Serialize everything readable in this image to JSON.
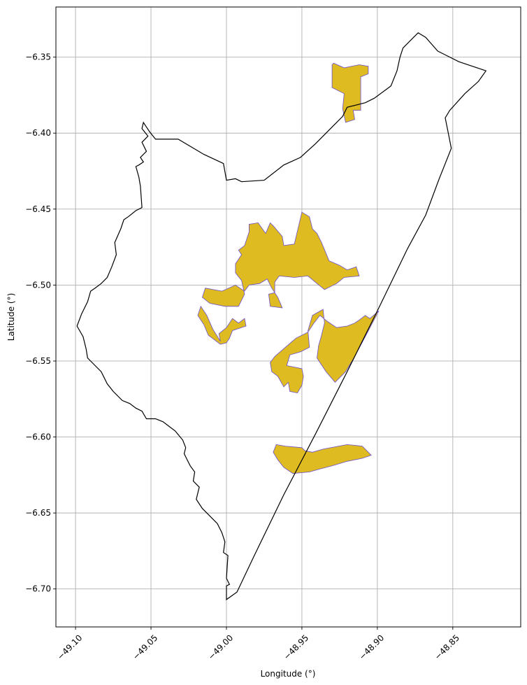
{
  "chart_data": {
    "type": "map",
    "xlabel": "Longitude (°)",
    "ylabel": "Latitude (°)",
    "xlim": [
      -49.113,
      -48.805
    ],
    "ylim": [
      -6.725,
      -6.317
    ],
    "grid": true,
    "x_ticks": [
      {
        "value": -49.1,
        "label": "−49.10"
      },
      {
        "value": -49.05,
        "label": "−49.05"
      },
      {
        "value": -49.0,
        "label": "−49.00"
      },
      {
        "value": -48.95,
        "label": "−48.95"
      },
      {
        "value": -48.9,
        "label": "−48.90"
      },
      {
        "value": -48.85,
        "label": "−48.85"
      }
    ],
    "y_ticks": [
      {
        "value": -6.35,
        "label": "−6.35"
      },
      {
        "value": -6.4,
        "label": "−6.40"
      },
      {
        "value": -6.45,
        "label": "−6.45"
      },
      {
        "value": -6.5,
        "label": "−6.50"
      },
      {
        "value": -6.55,
        "label": "−6.55"
      },
      {
        "value": -6.6,
        "label": "−6.60"
      },
      {
        "value": -6.65,
        "label": "−6.65"
      },
      {
        "value": -6.7,
        "label": "−6.70"
      }
    ],
    "colors": {
      "fill": "#dfbb22",
      "edge": "#6a4fd0",
      "boundary": "#000000"
    },
    "boundary": [
      [
        -48.873,
        -6.334
      ],
      [
        -48.877,
        -6.338
      ],
      [
        -48.883,
        -6.344
      ],
      [
        -48.885,
        -6.35
      ],
      [
        -48.887,
        -6.359
      ],
      [
        -48.891,
        -6.369
      ],
      [
        -48.902,
        -6.377
      ],
      [
        -48.908,
        -6.38
      ],
      [
        -48.92,
        -6.383
      ],
      [
        -48.923,
        -6.389
      ],
      [
        -48.93,
        -6.396
      ],
      [
        -48.941,
        -6.407
      ],
      [
        -48.951,
        -6.416
      ],
      [
        -48.962,
        -6.421
      ],
      [
        -48.975,
        -6.431
      ],
      [
        -48.99,
        -6.432
      ],
      [
        -48.994,
        -6.43
      ],
      [
        -49.0,
        -6.431
      ],
      [
        -49.002,
        -6.42
      ],
      [
        -49.015,
        -6.414
      ],
      [
        -49.032,
        -6.404
      ],
      [
        -49.047,
        -6.404
      ],
      [
        -49.051,
        -6.399
      ],
      [
        -49.053,
        -6.396
      ],
      [
        -49.055,
        -6.393
      ],
      [
        -49.056,
        -6.397
      ],
      [
        -49.052,
        -6.402
      ],
      [
        -49.056,
        -6.406
      ],
      [
        -49.053,
        -6.412
      ],
      [
        -49.057,
        -6.416
      ],
      [
        -49.055,
        -6.419
      ],
      [
        -49.058,
        -6.421
      ],
      [
        -49.06,
        -6.422
      ],
      [
        -49.058,
        -6.429
      ],
      [
        -49.057,
        -6.435
      ],
      [
        -49.056,
        -6.449
      ],
      [
        -49.06,
        -6.451
      ],
      [
        -49.065,
        -6.455
      ],
      [
        -49.068,
        -6.457
      ],
      [
        -49.07,
        -6.463
      ],
      [
        -49.074,
        -6.472
      ],
      [
        -49.073,
        -6.48
      ],
      [
        -49.076,
        -6.488
      ],
      [
        -49.079,
        -6.495
      ],
      [
        -49.083,
        -6.499
      ],
      [
        -49.087,
        -6.502
      ],
      [
        -49.09,
        -6.504
      ],
      [
        -49.092,
        -6.511
      ],
      [
        -49.096,
        -6.519
      ],
      [
        -49.099,
        -6.527
      ],
      [
        -49.095,
        -6.534
      ],
      [
        -49.093,
        -6.542
      ],
      [
        -49.092,
        -6.548
      ],
      [
        -49.087,
        -6.553
      ],
      [
        -49.083,
        -6.557
      ],
      [
        -49.079,
        -6.565
      ],
      [
        -49.075,
        -6.57
      ],
      [
        -49.069,
        -6.576
      ],
      [
        -49.064,
        -6.578
      ],
      [
        -49.06,
        -6.581
      ],
      [
        -49.056,
        -6.583
      ],
      [
        -49.053,
        -6.588
      ],
      [
        -49.047,
        -6.588
      ],
      [
        -49.042,
        -6.59
      ],
      [
        -49.038,
        -6.593
      ],
      [
        -49.034,
        -6.596
      ],
      [
        -49.029,
        -6.602
      ],
      [
        -49.027,
        -6.607
      ],
      [
        -49.028,
        -6.611
      ],
      [
        -49.026,
        -6.615
      ],
      [
        -49.024,
        -6.619
      ],
      [
        -49.021,
        -6.623
      ],
      [
        -49.022,
        -6.629
      ],
      [
        -49.018,
        -6.633
      ],
      [
        -49.02,
        -6.641
      ],
      [
        -49.016,
        -6.647
      ],
      [
        -49.012,
        -6.651
      ],
      [
        -49.006,
        -6.657
      ],
      [
        -49.003,
        -6.663
      ],
      [
        -49.001,
        -6.669
      ],
      [
        -49.002,
        -6.676
      ],
      [
        -48.999,
        -6.678
      ],
      [
        -49.0,
        -6.693
      ],
      [
        -48.998,
        -6.697
      ],
      [
        -49.0,
        -6.698
      ],
      [
        -49.0,
        -6.707
      ],
      [
        -48.993,
        -6.702
      ],
      [
        -48.982,
        -6.679
      ],
      [
        -48.962,
        -6.638
      ],
      [
        -48.941,
        -6.598
      ],
      [
        -48.92,
        -6.557
      ],
      [
        -48.899,
        -6.515
      ],
      [
        -48.88,
        -6.476
      ],
      [
        -48.868,
        -6.454
      ],
      [
        -48.859,
        -6.43
      ],
      [
        -48.851,
        -6.41
      ],
      [
        -48.853,
        -6.4
      ],
      [
        -48.855,
        -6.39
      ],
      [
        -48.852,
        -6.385
      ],
      [
        -48.842,
        -6.374
      ],
      [
        -48.833,
        -6.366
      ],
      [
        -48.828,
        -6.359
      ],
      [
        -48.846,
        -6.353
      ],
      [
        -48.86,
        -6.346
      ],
      [
        -48.868,
        -6.337
      ],
      [
        -48.873,
        -6.334
      ]
    ],
    "patches": [
      [
        [
          -48.929,
          -6.354
        ],
        [
          -48.922,
          -6.357
        ],
        [
          -48.912,
          -6.355
        ],
        [
          -48.906,
          -6.356
        ],
        [
          -48.906,
          -6.361
        ],
        [
          -48.911,
          -6.363
        ],
        [
          -48.911,
          -6.385
        ],
        [
          -48.916,
          -6.385
        ],
        [
          -48.915,
          -6.391
        ],
        [
          -48.921,
          -6.393
        ],
        [
          -48.923,
          -6.384
        ],
        [
          -48.922,
          -6.374
        ],
        [
          -48.93,
          -6.37
        ],
        [
          -48.93,
          -6.355
        ]
      ],
      [
        [
          -48.985,
          -6.46
        ],
        [
          -48.979,
          -6.459
        ],
        [
          -48.974,
          -6.466
        ],
        [
          -48.971,
          -6.459
        ],
        [
          -48.969,
          -6.461
        ],
        [
          -48.963,
          -6.468
        ],
        [
          -48.962,
          -6.474
        ],
        [
          -48.955,
          -6.473
        ],
        [
          -48.95,
          -6.452
        ],
        [
          -48.945,
          -6.455
        ],
        [
          -48.943,
          -6.463
        ],
        [
          -48.94,
          -6.466
        ],
        [
          -48.937,
          -6.472
        ],
        [
          -48.932,
          -6.484
        ],
        [
          -48.925,
          -6.487
        ],
        [
          -48.92,
          -6.49
        ],
        [
          -48.914,
          -6.488
        ],
        [
          -48.912,
          -6.494
        ],
        [
          -48.922,
          -6.495
        ],
        [
          -48.927,
          -6.499
        ],
        [
          -48.935,
          -6.503
        ],
        [
          -48.94,
          -6.499
        ],
        [
          -48.946,
          -6.494
        ],
        [
          -48.955,
          -6.495
        ],
        [
          -48.965,
          -6.494
        ],
        [
          -48.968,
          -6.498
        ],
        [
          -48.968,
          -6.505
        ],
        [
          -48.972,
          -6.506
        ],
        [
          -48.971,
          -6.514
        ],
        [
          -48.963,
          -6.515
        ],
        [
          -48.966,
          -6.508
        ],
        [
          -48.97,
          -6.502
        ],
        [
          -48.973,
          -6.496
        ],
        [
          -48.978,
          -6.499
        ],
        [
          -48.985,
          -6.5
        ],
        [
          -48.988,
          -6.504
        ],
        [
          -48.994,
          -6.5
        ],
        [
          -49.003,
          -6.504
        ],
        [
          -49.014,
          -6.502
        ],
        [
          -49.016,
          -6.508
        ],
        [
          -49.011,
          -6.512
        ],
        [
          -49.001,
          -6.514
        ],
        [
          -48.992,
          -6.514
        ],
        [
          -48.988,
          -6.506
        ],
        [
          -48.99,
          -6.497
        ],
        [
          -48.994,
          -6.492
        ],
        [
          -48.994,
          -6.486
        ],
        [
          -48.99,
          -6.48
        ],
        [
          -48.992,
          -6.477
        ],
        [
          -48.988,
          -6.474
        ],
        [
          -48.985,
          -6.465
        ]
      ],
      [
        [
          -49.017,
          -6.514
        ],
        [
          -49.013,
          -6.52
        ],
        [
          -49.009,
          -6.529
        ],
        [
          -49.004,
          -6.537
        ],
        [
          -49.005,
          -6.532
        ],
        [
          -49.0,
          -6.528
        ],
        [
          -48.996,
          -6.522
        ],
        [
          -48.992,
          -6.525
        ],
        [
          -48.988,
          -6.522
        ],
        [
          -48.987,
          -6.527
        ],
        [
          -48.996,
          -6.53
        ],
        [
          -48.998,
          -6.535
        ],
        [
          -49.0,
          -6.538
        ],
        [
          -49.004,
          -6.539
        ],
        [
          -49.008,
          -6.536
        ],
        [
          -49.012,
          -6.533
        ],
        [
          -49.015,
          -6.526
        ],
        [
          -49.019,
          -6.52
        ]
      ],
      [
        [
          -48.936,
          -6.516
        ],
        [
          -48.943,
          -6.52
        ],
        [
          -48.946,
          -6.53
        ],
        [
          -48.945,
          -6.541
        ],
        [
          -48.951,
          -6.544
        ],
        [
          -48.958,
          -6.546
        ],
        [
          -48.96,
          -6.553
        ],
        [
          -48.95,
          -6.555
        ],
        [
          -48.949,
          -6.56
        ],
        [
          -48.95,
          -6.566
        ],
        [
          -48.953,
          -6.571
        ],
        [
          -48.958,
          -6.57
        ],
        [
          -48.959,
          -6.564
        ],
        [
          -48.962,
          -6.567
        ],
        [
          -48.966,
          -6.56
        ],
        [
          -48.97,
          -6.557
        ],
        [
          -48.971,
          -6.551
        ],
        [
          -48.968,
          -6.547
        ],
        [
          -48.961,
          -6.541
        ],
        [
          -48.954,
          -6.535
        ],
        [
          -48.946,
          -6.531
        ],
        [
          -48.942,
          -6.525
        ],
        [
          -48.938,
          -6.52
        ],
        [
          -48.933,
          -6.524
        ],
        [
          -48.927,
          -6.528
        ],
        [
          -48.92,
          -6.527
        ],
        [
          -48.915,
          -6.525
        ],
        [
          -48.912,
          -6.523
        ],
        [
          -48.908,
          -6.52
        ],
        [
          -48.905,
          -6.522
        ],
        [
          -48.899,
          -6.517
        ],
        [
          -48.907,
          -6.532
        ],
        [
          -48.915,
          -6.547
        ],
        [
          -48.921,
          -6.557
        ],
        [
          -48.928,
          -6.564
        ],
        [
          -48.934,
          -6.557
        ],
        [
          -48.94,
          -6.548
        ],
        [
          -48.939,
          -6.54
        ],
        [
          -48.937,
          -6.533
        ],
        [
          -48.935,
          -6.525
        ]
      ],
      [
        [
          -48.967,
          -6.605
        ],
        [
          -48.961,
          -6.606
        ],
        [
          -48.95,
          -6.607
        ],
        [
          -48.948,
          -6.609
        ],
        [
          -48.943,
          -6.61
        ],
        [
          -48.936,
          -6.608
        ],
        [
          -48.92,
          -6.605
        ],
        [
          -48.91,
          -6.606
        ],
        [
          -48.904,
          -6.612
        ],
        [
          -48.91,
          -6.614
        ],
        [
          -48.92,
          -6.616
        ],
        [
          -48.93,
          -6.619
        ],
        [
          -48.938,
          -6.621
        ],
        [
          -48.945,
          -6.623
        ],
        [
          -48.956,
          -6.624
        ],
        [
          -48.962,
          -6.62
        ],
        [
          -48.966,
          -6.615
        ],
        [
          -48.969,
          -6.61
        ]
      ]
    ]
  }
}
